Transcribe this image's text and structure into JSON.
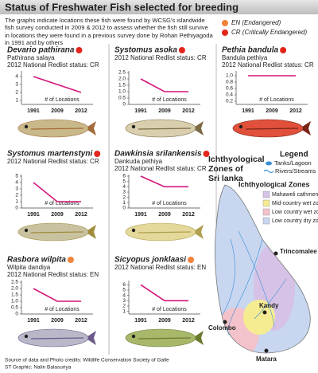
{
  "title": "Status of Freshwater Fish selected for breeding",
  "intro": "The graphs indicate locations these fish were found by WCSG's islandwide fish survey conducted in 2009 & 2012 to assess whether the fish still survive in locations they were found in a previous survey done by Rohan Pethiyagoda in 1991 and by others",
  "status_legend": [
    {
      "label": "EN (Endangered)",
      "color": "#f0843a"
    },
    {
      "label": "CR (Critically Endangered)",
      "color": "#e3261c"
    }
  ],
  "chart_data": [
    {
      "type": "line",
      "title": "Devario pathirana",
      "subtitle": "Pathirana salaya",
      "status": "2012 National Redlist status: CR",
      "status_color": "#e3261c",
      "ylabel": "# of Locations",
      "categories": [
        "1991",
        "2009",
        "2012"
      ],
      "values": [
        4,
        3,
        2
      ],
      "color": "#d4147a",
      "ylim": [
        0.5,
        4.5
      ],
      "yticks": [
        1,
        2,
        3,
        4
      ]
    },
    {
      "type": "line",
      "title": "Systomus asoka",
      "status": "2012 National Redlist status: CR",
      "status_color": "#e3261c",
      "ylabel": "# of Locations",
      "categories": [
        "1991",
        "2009",
        "2012"
      ],
      "values": [
        2,
        1,
        1
      ],
      "color": "#d4147a",
      "ylim": [
        0,
        2.5
      ],
      "yticks": [
        0,
        0.5,
        {
          "value": 1,
          "label": "1.0"
        },
        1.5,
        {
          "value": 2,
          "label": "2.0"
        },
        2.5
      ]
    },
    {
      "type": "line",
      "title": "Pethia bandula",
      "subtitle": "Bandula pethiya",
      "status": "2012 National Redlist status: CR",
      "status_color": "#e3261c",
      "ylabel": "# of Locations",
      "categories": [
        "1991",
        "2009",
        "2012"
      ],
      "values": [
        1,
        1,
        1
      ],
      "color": "#d4147a",
      "ylim": [
        0.1,
        1.1
      ],
      "yticks": [
        0.2,
        0.4,
        0.6,
        0.8,
        {
          "value": 1,
          "label": "1.0"
        }
      ]
    },
    {
      "type": "line",
      "title": "Systomus martenstyni",
      "status": "2012 National Redlist status: CR",
      "status_color": "#e3261c",
      "ylabel": "# of Locations",
      "categories": [
        "1991",
        "2009",
        "2012"
      ],
      "values": [
        4,
        1,
        1
      ],
      "color": "#d4147a",
      "ylim": [
        0,
        5
      ],
      "yticks": [
        0,
        1,
        2,
        3,
        4,
        5
      ]
    },
    {
      "type": "line",
      "title": "Dawkinsia srilankensis",
      "subtitle": "Dankuda pethiya",
      "status": "2012 National Redlist status: CR",
      "status_color": "#e3261c",
      "ylabel": "# of Locations",
      "categories": [
        "1991",
        "2009",
        "2012"
      ],
      "values": [
        6,
        4,
        4
      ],
      "color": "#d4147a",
      "ylim": [
        0,
        6
      ],
      "yticks": [
        0,
        1,
        2,
        3,
        4,
        5,
        6
      ]
    },
    {
      "type": "line",
      "title": "Rasbora wilpita",
      "subtitle": "Wilpita dandiya",
      "status": "2012 National Redlist status: EN",
      "status_color": "#f0843a",
      "ylabel": "# of Locations",
      "categories": [
        "1991",
        "2009",
        "2012"
      ],
      "values": [
        2,
        1,
        1
      ],
      "color": "#d4147a",
      "ylim": [
        0,
        2.5
      ],
      "yticks": [
        0,
        0.5,
        {
          "value": 1,
          "label": "1.0"
        },
        1.5,
        {
          "value": 2,
          "label": "2.0"
        },
        2.5
      ]
    },
    {
      "type": "line",
      "title": "Sicyopus jonklaasi",
      "status": "2012 National Redlist status: EN",
      "status_color": "#f0843a",
      "ylabel": "# of Locations",
      "categories": [
        "1991",
        "2009",
        "2012"
      ],
      "values": [
        6,
        3,
        3
      ],
      "color": "#d4147a",
      "ylim": [
        0.5,
        6.5
      ],
      "yticks": [
        1,
        2,
        3,
        4,
        5,
        6
      ]
    }
  ],
  "map": {
    "title_lines": [
      "Ichthyological",
      "Zones of",
      "Sri lanka"
    ],
    "legend_title": "Legend",
    "water": [
      {
        "label": "Tanks/Lagoon",
        "color": "#3a8fd6"
      },
      {
        "label": "Rivers/Streams",
        "color": "#3a8fd6"
      }
    ],
    "zones_title": "Ichthyological Zones",
    "zones": [
      {
        "label": "Mahaweli cathment",
        "color": "#d6c2e6"
      },
      {
        "label": "Mid-country wet zone",
        "color": "#f5ec92"
      },
      {
        "label": "Low country wet zone",
        "color": "#f4c2cb"
      },
      {
        "label": "Low country dry zone",
        "color": "#c8d6f0"
      }
    ],
    "cities": [
      "Trincomalee",
      "Kandy",
      "Colombo",
      "Matara"
    ]
  },
  "footer": [
    "Source of data and Photo credits: Wildlife Conservation Society of Galle",
    "ST Graphic: Nalin Balasuriya"
  ]
}
